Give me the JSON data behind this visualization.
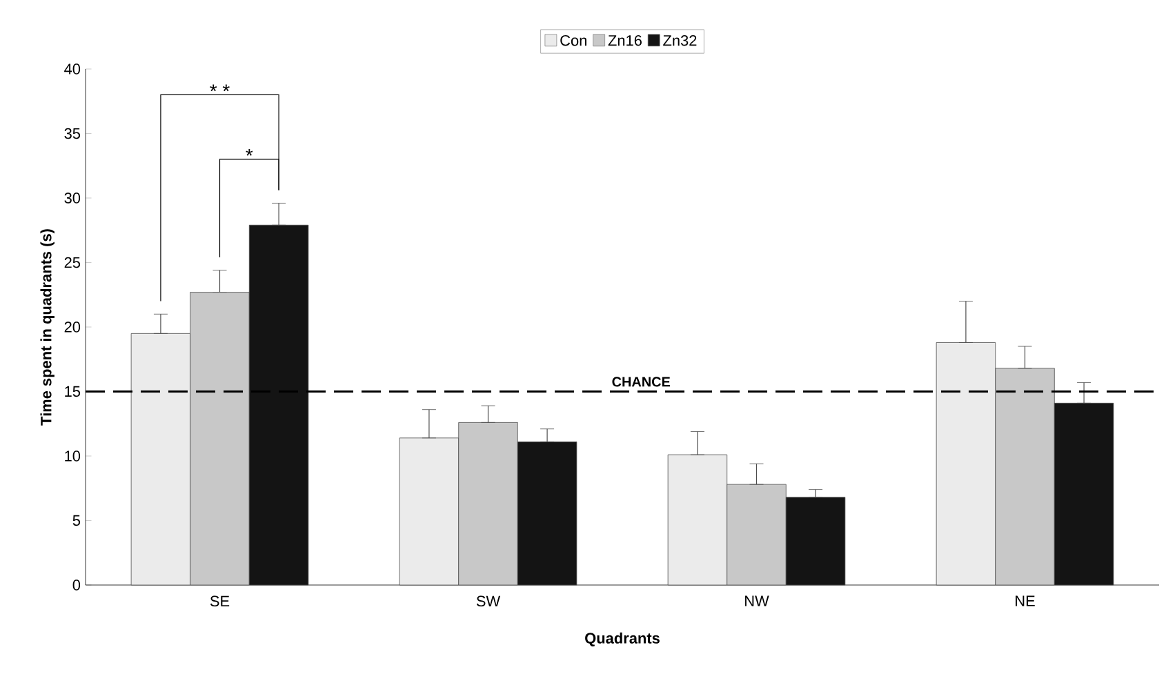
{
  "chart_data": {
    "type": "bar",
    "xlabel": "Quadrants",
    "ylabel": "Time spent in quadrants (s)",
    "categories": [
      "SE",
      "SW",
      "NW",
      "NE"
    ],
    "series": [
      {
        "name": "Con",
        "color": "#ebebeb",
        "values": [
          19.5,
          11.4,
          10.1,
          18.8
        ],
        "errors": [
          [
            19.5,
            21.0
          ],
          [
            11.4,
            13.6
          ],
          [
            10.1,
            11.9
          ],
          [
            18.8,
            22.0
          ]
        ]
      },
      {
        "name": "Zn16",
        "color": "#c8c8c8",
        "values": [
          22.7,
          12.6,
          7.8,
          16.8
        ],
        "errors": [
          [
            22.7,
            24.4
          ],
          [
            12.6,
            13.9
          ],
          [
            7.8,
            9.4
          ],
          [
            16.8,
            18.5
          ]
        ]
      },
      {
        "name": "Zn32",
        "color": "#141414",
        "values": [
          27.9,
          11.1,
          6.8,
          14.1
        ],
        "errors": [
          [
            27.9,
            29.6
          ],
          [
            11.1,
            12.1
          ],
          [
            6.8,
            7.4
          ],
          [
            14.1,
            15.7
          ]
        ]
      }
    ],
    "ylim": [
      0,
      40
    ],
    "yticks": [
      0,
      5,
      10,
      15,
      20,
      25,
      30,
      35,
      40
    ],
    "ref_lines": [
      {
        "axis": "y",
        "value": 15,
        "label": "CHANCE",
        "line_style": "dashed"
      }
    ],
    "annotations": [
      "* *",
      "*"
    ],
    "legend": "top",
    "grid": false
  }
}
